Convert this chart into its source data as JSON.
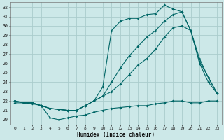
{
  "xlabel": "Humidex (Indice chaleur)",
  "bg_color": "#cce8e8",
  "grid_color": "#aacccc",
  "line_color": "#006666",
  "xlim": [
    -0.5,
    23.5
  ],
  "ylim": [
    19.5,
    32.5
  ],
  "xticks": [
    0,
    1,
    2,
    3,
    4,
    5,
    6,
    7,
    8,
    9,
    10,
    11,
    12,
    13,
    14,
    15,
    16,
    17,
    18,
    19,
    20,
    21,
    22,
    23
  ],
  "yticks": [
    20,
    21,
    22,
    23,
    24,
    25,
    26,
    27,
    28,
    29,
    30,
    31,
    32
  ],
  "line1_y": [
    22.0,
    21.8,
    21.8,
    21.5,
    21.2,
    21.1,
    21.0,
    21.0,
    21.5,
    22.0,
    23.5,
    29.5,
    30.5,
    30.8,
    30.8,
    31.2,
    31.3,
    32.2,
    31.8,
    31.5,
    29.5,
    26.5,
    24.5,
    22.8
  ],
  "line2_y": [
    22.0,
    21.8,
    21.8,
    21.5,
    21.2,
    21.1,
    21.0,
    21.0,
    21.5,
    22.0,
    22.5,
    24.0,
    25.5,
    26.8,
    27.8,
    28.8,
    29.5,
    30.5,
    31.2,
    31.5,
    29.5,
    26.0,
    24.0,
    22.8
  ],
  "line3_y": [
    22.0,
    21.8,
    21.8,
    21.5,
    21.2,
    21.1,
    21.0,
    21.0,
    21.5,
    22.0,
    22.5,
    23.0,
    23.8,
    24.8,
    25.8,
    26.5,
    27.5,
    28.8,
    29.8,
    30.0,
    29.5,
    26.2,
    24.5,
    22.8
  ],
  "line4_y": [
    21.8,
    21.8,
    21.7,
    21.5,
    20.2,
    20.0,
    20.2,
    20.4,
    20.5,
    20.8,
    21.0,
    21.2,
    21.3,
    21.4,
    21.5,
    21.5,
    21.7,
    21.8,
    22.0,
    22.0,
    21.8,
    21.8,
    22.0,
    22.0
  ]
}
